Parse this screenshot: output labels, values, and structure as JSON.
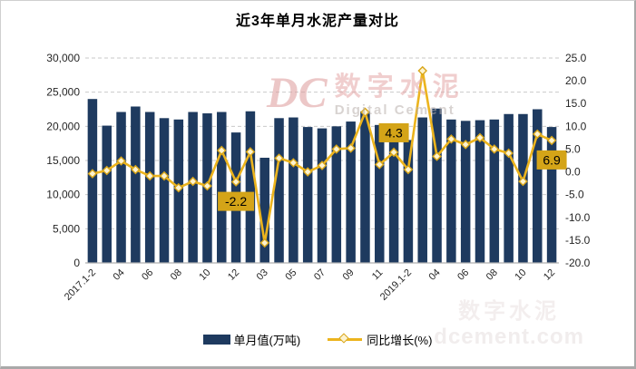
{
  "title": "近3年单月水泥产量对比",
  "watermark": {
    "logo": "DC",
    "cn": "数字水泥",
    "en": "Digital Cement",
    "corner_cn": "数字水泥",
    "corner_url": "dcement.com"
  },
  "legend": {
    "bar_label": "单月值(万吨)",
    "line_label": "同比增长(%)"
  },
  "colors": {
    "bar": "#1e3a5f",
    "line": "#ecb41d",
    "marker_fill": "#fdf3cf",
    "marker_stroke": "#d8a517",
    "annotation_bg": "#d4a418",
    "annotation_text": "#000000",
    "grid": "#c9c9c9",
    "axis_line": "#b0b0b0",
    "axis_text": "#262626"
  },
  "chart_data": {
    "type": "bar",
    "subtype": "bar+line dual-axis",
    "categories": [
      "2017.1-2",
      "2017.03",
      "2017.04",
      "2017.05",
      "2017.06",
      "2017.07",
      "2017.08",
      "2017.09",
      "2017.10",
      "2017.11",
      "2017.12",
      "2018.1-2",
      "2018.03",
      "2018.04",
      "2018.05",
      "2018.06",
      "2018.07",
      "2018.08",
      "2018.09",
      "2018.10",
      "2018.11",
      "2018.12",
      "2019.1-2",
      "2019.03",
      "2019.04",
      "2019.05",
      "2019.06",
      "2019.07",
      "2019.08",
      "2019.09",
      "2019.10",
      "2019.11",
      "2019.12"
    ],
    "tick_labels": [
      "2017.1-2",
      "",
      "04",
      "",
      "06",
      "",
      "08",
      "",
      "10",
      "",
      "12",
      "",
      "03",
      "",
      "05",
      "",
      "07",
      "",
      "09",
      "",
      "11",
      "",
      "2019.1-2",
      "",
      "04",
      "",
      "06",
      "",
      "08",
      "",
      "10",
      "",
      "12"
    ],
    "series": [
      {
        "name": "单月值(万吨)",
        "type": "bar",
        "axis": "left",
        "values": [
          24000,
          20100,
          22100,
          22900,
          22100,
          21200,
          21000,
          22100,
          21900,
          22100,
          19100,
          22200,
          15400,
          21200,
          21300,
          19900,
          19700,
          20000,
          20700,
          22200,
          20200,
          20400,
          18000,
          21300,
          22600,
          21000,
          20800,
          20900,
          21000,
          21800,
          21800,
          22500,
          19900
        ]
      },
      {
        "name": "同比增长(%)",
        "type": "line",
        "axis": "right",
        "values": [
          -0.4,
          0.3,
          2.4,
          0.5,
          -0.9,
          -0.9,
          -3.5,
          -2.1,
          -3.1,
          4.7,
          -2.2,
          4.4,
          -15.6,
          3.0,
          2.0,
          0.0,
          1.4,
          5.0,
          5.2,
          13.1,
          1.6,
          4.3,
          0.5,
          22.2,
          3.4,
          7.2,
          6.0,
          7.5,
          5.0,
          4.1,
          -2.1,
          8.3,
          6.9
        ]
      }
    ],
    "left_axis": {
      "min": 0,
      "max": 30000,
      "step": 5000,
      "tick_labels": [
        "0",
        "5,000",
        "10,000",
        "15,000",
        "20,000",
        "25,000",
        "30,000"
      ]
    },
    "right_axis": {
      "min": -20,
      "max": 25,
      "step": 5,
      "tick_labels": [
        "-20.0",
        "-15.0",
        "-10.0",
        "-5.0",
        "0.0",
        "5.0",
        "10.0",
        "15.0",
        "20.0",
        "25.0"
      ]
    },
    "annotations": [
      {
        "index": 10,
        "text": "-2.2",
        "placement": "below"
      },
      {
        "index": 21,
        "text": "4.3",
        "placement": "above"
      },
      {
        "index": 32,
        "text": "6.9",
        "placement": "below"
      }
    ],
    "grid": "horizontal-dashed",
    "legend_position": "bottom"
  }
}
